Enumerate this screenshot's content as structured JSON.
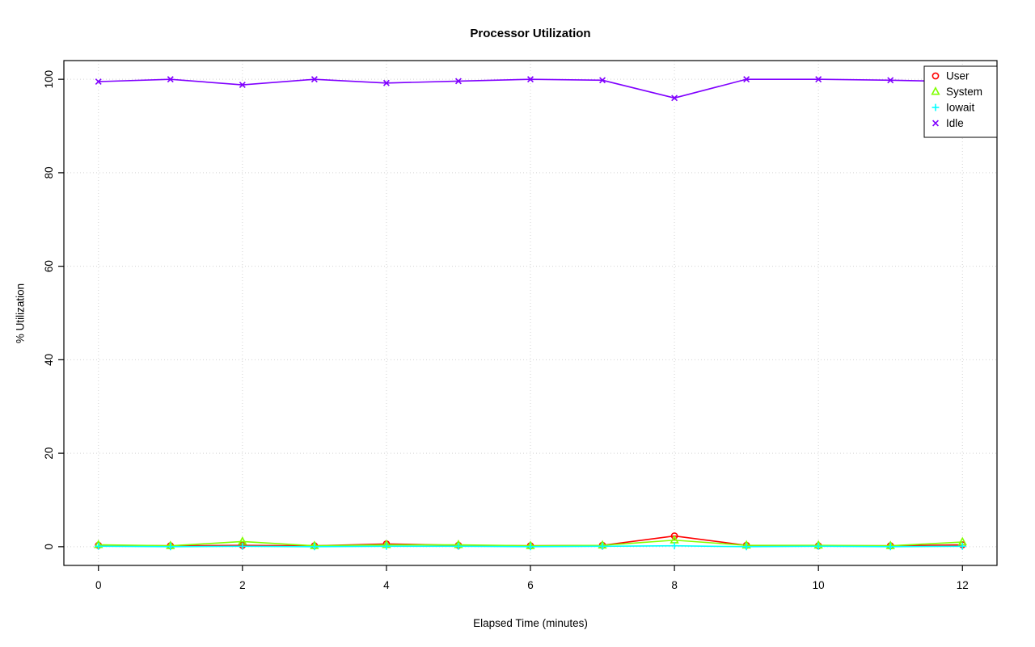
{
  "chart_data": {
    "type": "line",
    "title": "Processor Utilization",
    "xlabel": "Elapsed Time (minutes)",
    "ylabel": "% Utilization",
    "xlim": [
      0,
      12
    ],
    "ylim": [
      0,
      100
    ],
    "xticks": [
      0,
      2,
      4,
      6,
      8,
      10,
      12
    ],
    "yticks": [
      0,
      20,
      40,
      60,
      80,
      100
    ],
    "grid": true,
    "grid_color": "#d3d3d3",
    "axis_color": "#000000",
    "legend_position": "top-right",
    "x": [
      0,
      1,
      2,
      3,
      4,
      5,
      6,
      7,
      8,
      9,
      10,
      11,
      12
    ],
    "series": [
      {
        "name": "User",
        "marker": "circle",
        "color": "#FF0000",
        "values": [
          0.3,
          0.2,
          0.3,
          0.2,
          0.6,
          0.3,
          0.2,
          0.3,
          2.3,
          0.3,
          0.2,
          0.2,
          0.4
        ]
      },
      {
        "name": "System",
        "marker": "triangle",
        "color": "#80FF00",
        "values": [
          0.4,
          0.2,
          1.1,
          0.2,
          0.4,
          0.4,
          0.2,
          0.3,
          1.4,
          0.3,
          0.3,
          0.2,
          1.0
        ]
      },
      {
        "name": "Iowait",
        "marker": "plus",
        "color": "#00FFFF",
        "values": [
          0.1,
          0.0,
          0.1,
          0.0,
          0.1,
          0.1,
          0.0,
          0.1,
          0.2,
          0.0,
          0.1,
          0.0,
          0.1
        ]
      },
      {
        "name": "Idle",
        "marker": "x",
        "color": "#8000FF",
        "values": [
          99.5,
          100,
          98.8,
          100,
          99.2,
          99.6,
          100,
          99.8,
          96.0,
          100,
          100,
          99.8,
          99.5
        ]
      }
    ]
  }
}
